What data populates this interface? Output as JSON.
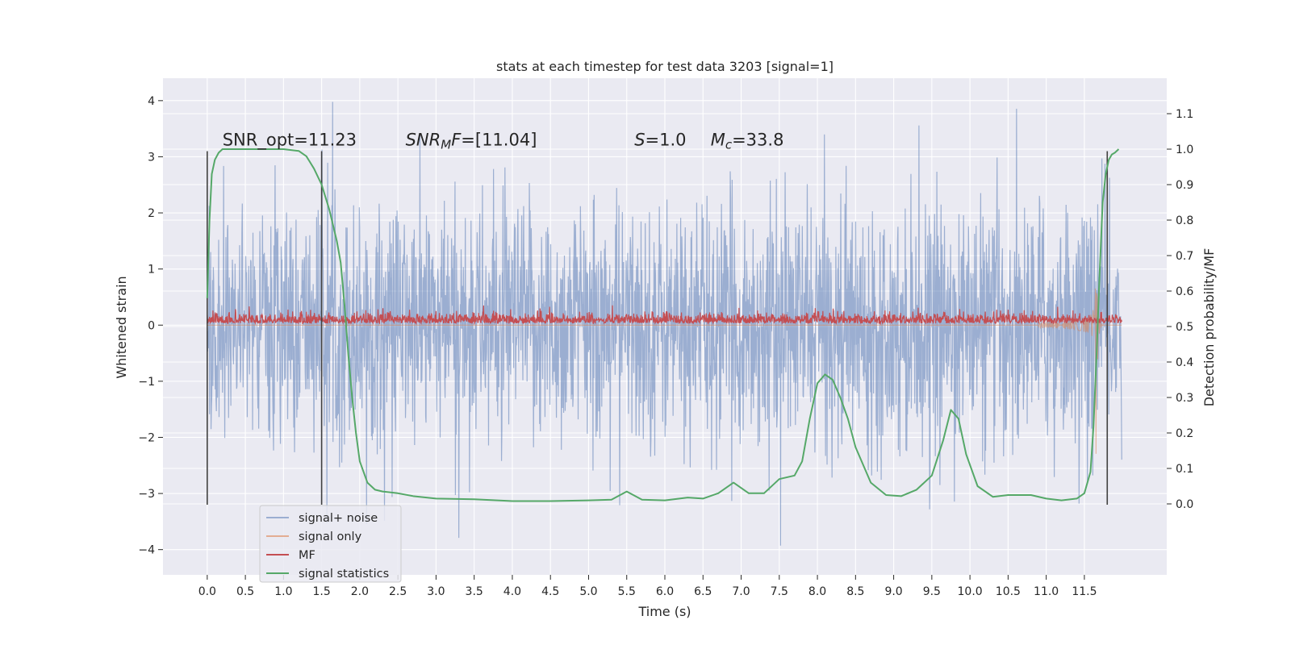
{
  "chart_data": {
    "type": "line",
    "title": "stats at each timestep for test data 3203 [signal=1]",
    "xlabel": "Time (s)",
    "ylabel": "Whitened strain",
    "ylabel_right": "Detection probability/MF",
    "xlim": [
      -0.58,
      12.58
    ],
    "ylim": [
      -4.45,
      4.4
    ],
    "ylim_right": [
      -0.2,
      1.2
    ],
    "x_ticks": [
      0.0,
      0.5,
      1.0,
      1.5,
      2.0,
      2.5,
      3.0,
      3.5,
      4.0,
      4.5,
      5.0,
      5.5,
      6.0,
      6.5,
      7.0,
      7.5,
      8.0,
      8.5,
      9.0,
      9.5,
      10.0,
      10.5,
      11.0,
      11.5
    ],
    "x_tick_labels": [
      "0.0",
      "0.5",
      "1.0",
      "1.5",
      "2.0",
      "2.5",
      "3.0",
      "3.5",
      "4.0",
      "4.5",
      "5.0",
      "5.5",
      "6.0",
      "6.5",
      "7.0",
      "7.5",
      "8.0",
      "8.5",
      "9.0",
      "9.5",
      "10.0",
      "10.5",
      "11.0",
      "11.5"
    ],
    "y_ticks": [
      -4,
      -3,
      -2,
      -1,
      0,
      1,
      2,
      3,
      4
    ],
    "y_tick_labels": [
      "−4",
      "−3",
      "−2",
      "−1",
      "0",
      "1",
      "2",
      "3",
      "4"
    ],
    "y_right_ticks": [
      0.0,
      0.1,
      0.2,
      0.3,
      0.4,
      0.5,
      0.6,
      0.7,
      0.8,
      0.9,
      1.0,
      1.1
    ],
    "y_right_tick_labels": [
      "0.0",
      "0.1",
      "0.2",
      "0.3",
      "0.4",
      "0.5",
      "0.6",
      "0.7",
      "0.8",
      "0.9",
      "1.0",
      "1.1"
    ],
    "grid": true,
    "legend_position": "bottom-left",
    "series": [
      {
        "name": "signal+ noise",
        "color": "#4c72b0",
        "style": "noise band",
        "x_range": [
          0.0,
          11.99
        ],
        "typical_range": [
          -1.9,
          1.9
        ],
        "extreme_range": [
          -4.1,
          4.0
        ]
      },
      {
        "name": "signal only",
        "color": "#dd8452",
        "style": "chirp",
        "x_range": [
          0.0,
          11.99
        ],
        "peak_time": 11.65,
        "peak_value": 2.75
      },
      {
        "name": "MF",
        "color": "#c44e52",
        "style": "noise band",
        "x_range": [
          0.0,
          11.99
        ],
        "typical_range": [
          0.0,
          0.3
        ]
      },
      {
        "name": "signal statistics",
        "color": "#55a868",
        "axis": "right",
        "x": [
          0.0,
          0.03,
          0.06,
          0.1,
          0.15,
          0.2,
          0.3,
          0.5,
          0.8,
          1.0,
          1.2,
          1.3,
          1.4,
          1.5,
          1.6,
          1.7,
          1.75,
          1.8,
          1.85,
          1.9,
          1.95,
          2.0,
          2.1,
          2.2,
          2.3,
          2.5,
          2.7,
          3.0,
          3.5,
          4.0,
          4.5,
          5.0,
          5.3,
          5.5,
          5.7,
          6.0,
          6.3,
          6.5,
          6.7,
          6.9,
          7.1,
          7.3,
          7.5,
          7.7,
          7.8,
          7.9,
          8.0,
          8.1,
          8.2,
          8.3,
          8.4,
          8.5,
          8.7,
          8.9,
          9.1,
          9.3,
          9.5,
          9.65,
          9.75,
          9.85,
          9.95,
          10.1,
          10.3,
          10.5,
          10.8,
          11.0,
          11.2,
          11.4,
          11.5,
          11.58,
          11.62,
          11.66,
          11.7,
          11.74,
          11.78,
          11.82,
          11.86,
          11.9,
          11.95
        ],
        "y": [
          0.58,
          0.8,
          0.93,
          0.97,
          0.99,
          1.0,
          1.0,
          1.0,
          1.0,
          1.0,
          0.995,
          0.98,
          0.945,
          0.9,
          0.83,
          0.74,
          0.68,
          0.56,
          0.42,
          0.3,
          0.2,
          0.12,
          0.06,
          0.04,
          0.035,
          0.03,
          0.022,
          0.015,
          0.013,
          0.008,
          0.008,
          0.01,
          0.012,
          0.035,
          0.012,
          0.01,
          0.018,
          0.015,
          0.03,
          0.06,
          0.03,
          0.03,
          0.07,
          0.08,
          0.12,
          0.24,
          0.34,
          0.365,
          0.35,
          0.3,
          0.24,
          0.16,
          0.06,
          0.025,
          0.022,
          0.04,
          0.08,
          0.18,
          0.265,
          0.24,
          0.14,
          0.05,
          0.02,
          0.025,
          0.025,
          0.015,
          0.01,
          0.015,
          0.03,
          0.09,
          0.22,
          0.42,
          0.65,
          0.85,
          0.93,
          0.97,
          0.985,
          0.99,
          1.0
        ]
      }
    ],
    "markers": {
      "color": "#404040",
      "x": [
        0.0,
        1.5,
        11.8
      ],
      "y_range": [
        -3.2,
        3.1
      ]
    },
    "annotations": [
      {
        "html": "SNR_opt=11.23",
        "x": 0.2,
        "y": 3.2
      },
      {
        "html": "<tspan font-style=\"italic\">SNR</tspan><tspan font-style=\"italic\" font-size=\"15\" dy=\"4\">M</tspan><tspan font-style=\"italic\" dy=\"-4\">F</tspan>=[11.04]",
        "x": 2.6,
        "y": 3.2
      },
      {
        "html": "<tspan font-style=\"italic\">S</tspan>=1.0",
        "x": 5.6,
        "y": 3.2
      },
      {
        "html": "<tspan font-style=\"italic\">M</tspan><tspan font-style=\"italic\" font-size=\"15\" dy=\"4\">c</tspan><tspan dy=\"-4\">=33.8</tspan>",
        "x": 6.6,
        "y": 3.2
      }
    ]
  }
}
